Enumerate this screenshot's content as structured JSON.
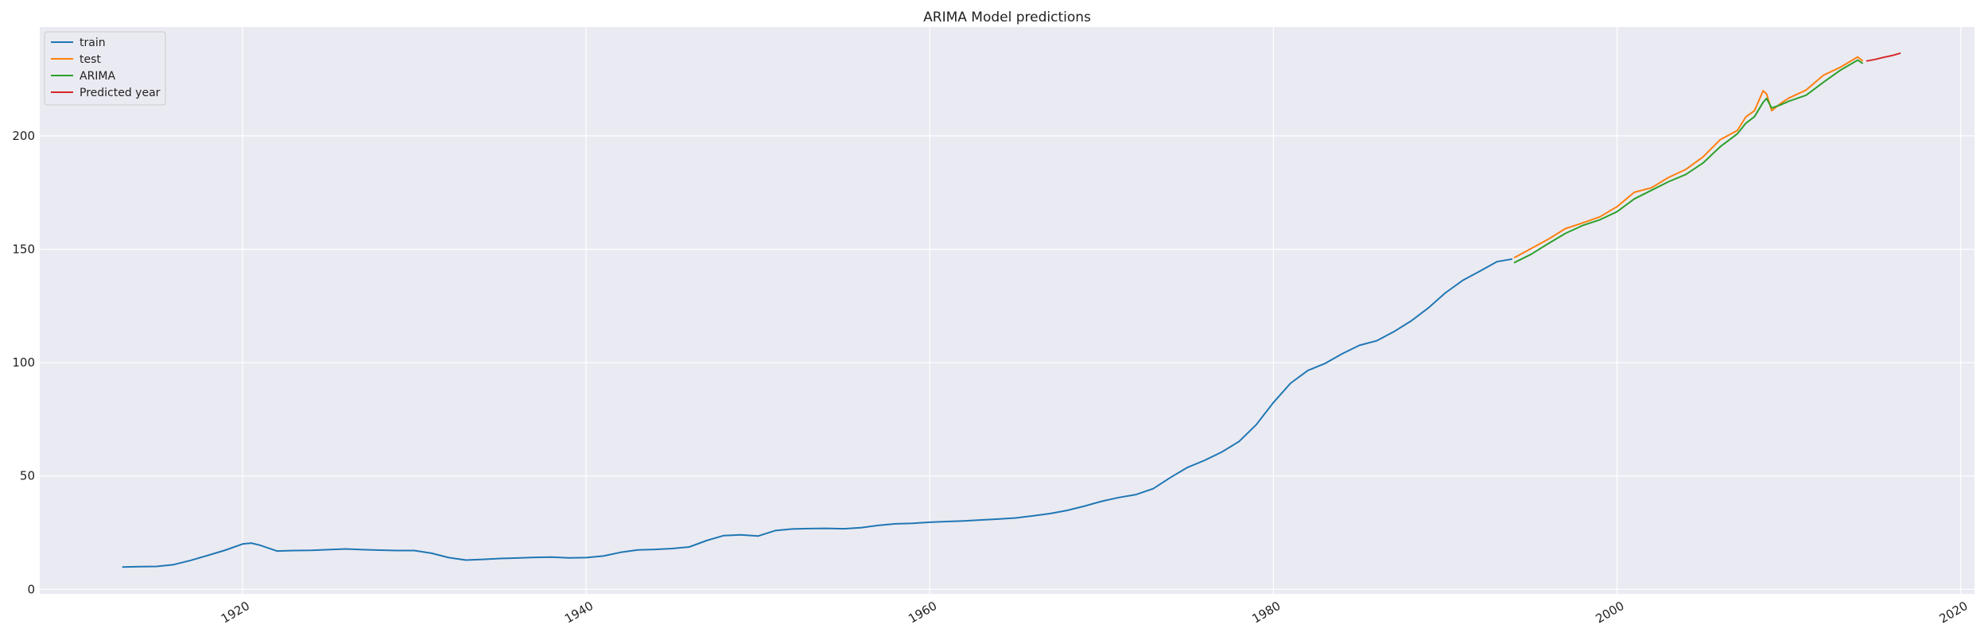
{
  "chart_data": {
    "type": "line",
    "title": "ARIMA Model predictions",
    "xlabel": "",
    "ylabel": "",
    "xlim": [
      1908.2,
      2020.8
    ],
    "ylim": [
      -2,
      248
    ],
    "x_ticks": [
      1920,
      1940,
      1960,
      1980,
      2000,
      2020
    ],
    "x_tick_labels": [
      "1920",
      "1940",
      "1960",
      "1980",
      "2000",
      "2020"
    ],
    "y_ticks": [
      0,
      50,
      100,
      150,
      200
    ],
    "y_tick_labels": [
      "0",
      "50",
      "100",
      "150",
      "200"
    ],
    "grid": true,
    "legend_position": "top-left",
    "background_color": "#eaeaf2",
    "series": [
      {
        "name": "train",
        "color": "#1f77b4",
        "points": [
          [
            1913.0,
            9.8
          ],
          [
            1914.0,
            10.0
          ],
          [
            1915.0,
            10.1
          ],
          [
            1916.0,
            10.9
          ],
          [
            1917.0,
            12.8
          ],
          [
            1918.0,
            15.0
          ],
          [
            1919.0,
            17.3
          ],
          [
            1920.0,
            20.0
          ],
          [
            1920.5,
            20.4
          ],
          [
            1921.0,
            19.5
          ],
          [
            1922.0,
            16.9
          ],
          [
            1923.0,
            17.1
          ],
          [
            1924.0,
            17.2
          ],
          [
            1925.0,
            17.5
          ],
          [
            1926.0,
            17.8
          ],
          [
            1927.0,
            17.5
          ],
          [
            1928.0,
            17.3
          ],
          [
            1929.0,
            17.1
          ],
          [
            1930.0,
            17.1
          ],
          [
            1931.0,
            15.9
          ],
          [
            1932.0,
            14.0
          ],
          [
            1933.0,
            12.9
          ],
          [
            1934.0,
            13.2
          ],
          [
            1935.0,
            13.6
          ],
          [
            1936.0,
            13.8
          ],
          [
            1937.0,
            14.1
          ],
          [
            1938.0,
            14.2
          ],
          [
            1939.0,
            13.9
          ],
          [
            1940.0,
            14.0
          ],
          [
            1941.0,
            14.7
          ],
          [
            1942.0,
            16.3
          ],
          [
            1943.0,
            17.4
          ],
          [
            1944.0,
            17.6
          ],
          [
            1945.0,
            18.0
          ],
          [
            1946.0,
            18.7
          ],
          [
            1947.0,
            21.5
          ],
          [
            1948.0,
            23.7
          ],
          [
            1949.0,
            24.0
          ],
          [
            1950.0,
            23.5
          ],
          [
            1951.0,
            25.9
          ],
          [
            1952.0,
            26.6
          ],
          [
            1953.0,
            26.8
          ],
          [
            1954.0,
            26.9
          ],
          [
            1955.0,
            26.7
          ],
          [
            1956.0,
            27.2
          ],
          [
            1957.0,
            28.2
          ],
          [
            1958.0,
            28.9
          ],
          [
            1959.0,
            29.1
          ],
          [
            1960.0,
            29.6
          ],
          [
            1961.0,
            29.9
          ],
          [
            1962.0,
            30.2
          ],
          [
            1963.0,
            30.6
          ],
          [
            1964.0,
            31.0
          ],
          [
            1965.0,
            31.5
          ],
          [
            1966.0,
            32.4
          ],
          [
            1967.0,
            33.4
          ],
          [
            1968.0,
            34.8
          ],
          [
            1969.0,
            36.7
          ],
          [
            1970.0,
            38.8
          ],
          [
            1971.0,
            40.5
          ],
          [
            1972.0,
            41.8
          ],
          [
            1973.0,
            44.4
          ],
          [
            1974.0,
            49.3
          ],
          [
            1975.0,
            53.8
          ],
          [
            1976.0,
            56.9
          ],
          [
            1977.0,
            60.6
          ],
          [
            1978.0,
            65.2
          ],
          [
            1979.0,
            72.6
          ],
          [
            1980.0,
            82.4
          ],
          [
            1981.0,
            90.9
          ],
          [
            1982.0,
            96.5
          ],
          [
            1983.0,
            99.6
          ],
          [
            1984.0,
            103.9
          ],
          [
            1985.0,
            107.6
          ],
          [
            1986.0,
            109.6
          ],
          [
            1987.0,
            113.6
          ],
          [
            1988.0,
            118.3
          ],
          [
            1989.0,
            124.0
          ],
          [
            1990.0,
            130.7
          ],
          [
            1991.0,
            136.2
          ],
          [
            1992.0,
            140.3
          ],
          [
            1993.0,
            144.5
          ],
          [
            1993.9,
            145.7
          ]
        ]
      },
      {
        "name": "test",
        "color": "#ff7f0e",
        "points": [
          [
            1994.0,
            146.2
          ],
          [
            1995.0,
            150.3
          ],
          [
            1996.0,
            154.4
          ],
          [
            1997.0,
            159.1
          ],
          [
            1998.0,
            161.6
          ],
          [
            1999.0,
            164.3
          ],
          [
            2000.0,
            168.8
          ],
          [
            2001.0,
            175.1
          ],
          [
            2002.0,
            177.1
          ],
          [
            2003.0,
            181.7
          ],
          [
            2004.0,
            185.2
          ],
          [
            2005.0,
            190.7
          ],
          [
            2006.0,
            198.3
          ],
          [
            2007.0,
            202.4
          ],
          [
            2007.5,
            208.4
          ],
          [
            2008.0,
            211.1
          ],
          [
            2008.5,
            219.9
          ],
          [
            2008.7,
            218.5
          ],
          [
            2009.0,
            211.1
          ],
          [
            2009.5,
            214.2
          ],
          [
            2010.0,
            216.7
          ],
          [
            2011.0,
            220.2
          ],
          [
            2012.0,
            226.7
          ],
          [
            2013.0,
            230.3
          ],
          [
            2014.0,
            234.8
          ],
          [
            2014.3,
            233.0
          ]
        ]
      },
      {
        "name": "ARIMA",
        "color": "#2ca02c",
        "points": [
          [
            1994.0,
            144.0
          ],
          [
            1995.0,
            147.8
          ],
          [
            1996.0,
            152.5
          ],
          [
            1997.0,
            157.0
          ],
          [
            1998.0,
            160.5
          ],
          [
            1999.0,
            163.0
          ],
          [
            2000.0,
            166.6
          ],
          [
            2001.0,
            172.2
          ],
          [
            2002.0,
            176.0
          ],
          [
            2003.0,
            179.8
          ],
          [
            2004.0,
            183.0
          ],
          [
            2005.0,
            188.0
          ],
          [
            2006.0,
            195.2
          ],
          [
            2007.0,
            200.9
          ],
          [
            2007.5,
            205.6
          ],
          [
            2008.0,
            208.5
          ],
          [
            2008.5,
            214.8
          ],
          [
            2008.7,
            216.5
          ],
          [
            2009.0,
            212.3
          ],
          [
            2009.5,
            213.6
          ],
          [
            2010.0,
            215.3
          ],
          [
            2011.0,
            217.9
          ],
          [
            2012.0,
            223.6
          ],
          [
            2013.0,
            229.0
          ],
          [
            2014.0,
            233.4
          ],
          [
            2014.3,
            231.9
          ]
        ]
      },
      {
        "name": "Predicted year",
        "color": "#d62728",
        "points": [
          [
            2014.5,
            233.0
          ],
          [
            2015.0,
            233.7
          ],
          [
            2015.5,
            234.6
          ],
          [
            2016.0,
            235.4
          ],
          [
            2016.5,
            236.5
          ]
        ]
      }
    ]
  }
}
